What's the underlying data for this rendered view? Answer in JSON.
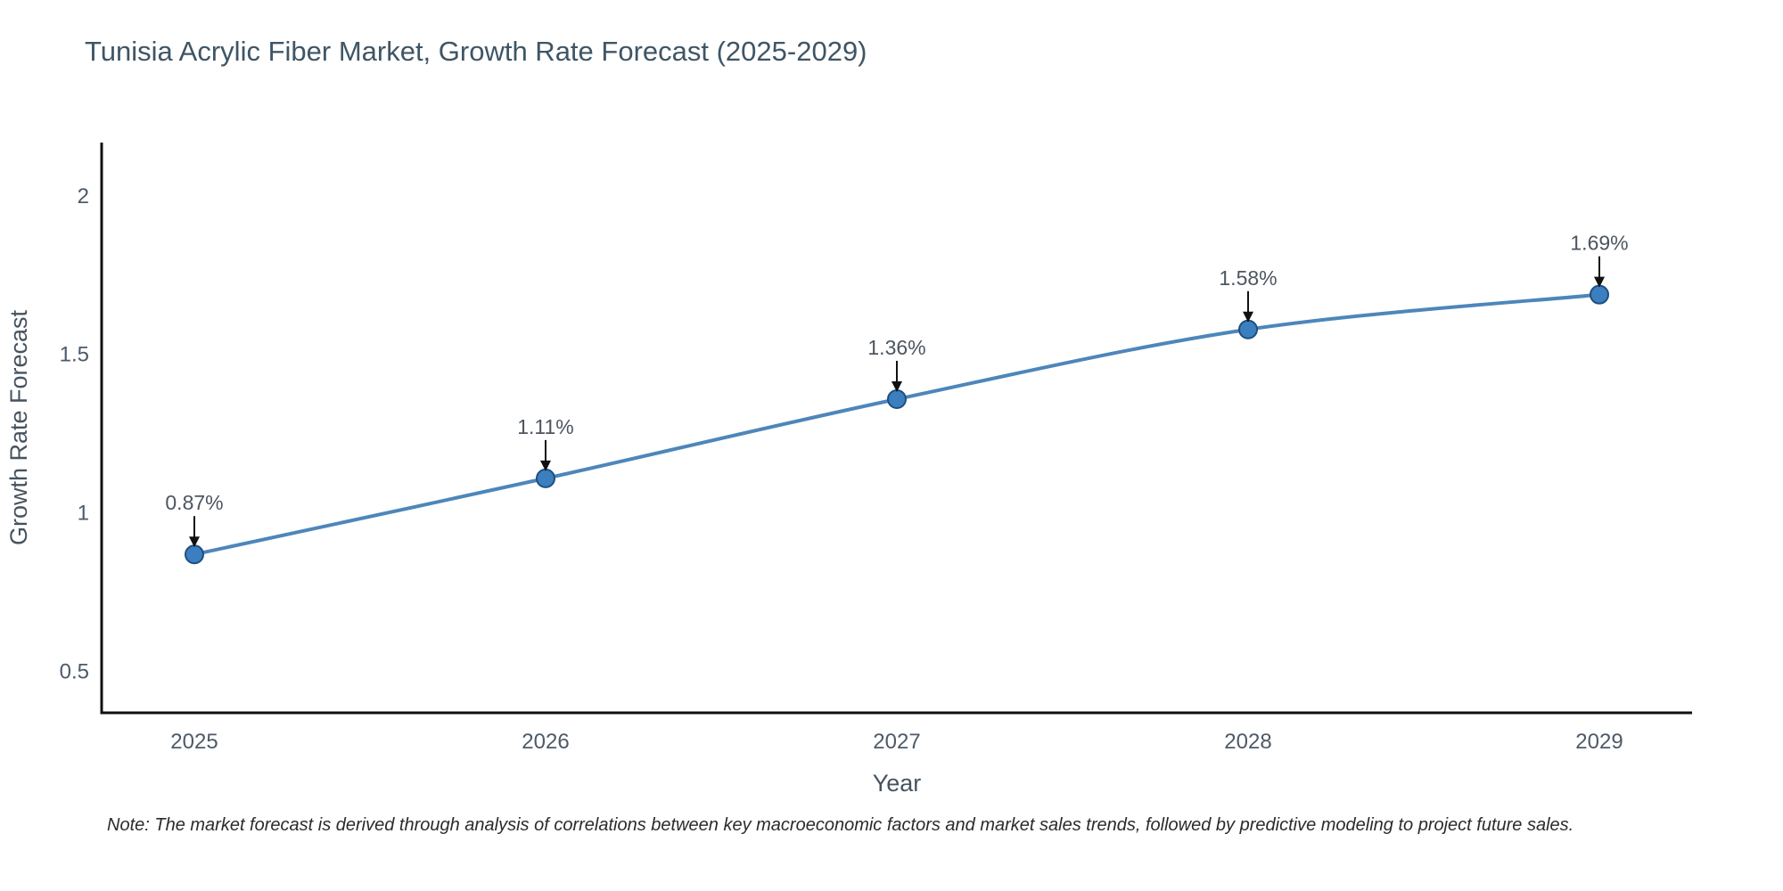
{
  "title": "Tunisia Acrylic Fiber Market, Growth Rate Forecast (2025-2029)",
  "note": "Note: The market forecast is derived through analysis of correlations between key macroeconomic factors and market sales trends, followed by predictive modeling to project future sales.",
  "chart_data": {
    "type": "line",
    "title": "Tunisia Acrylic Fiber Market, Growth Rate Forecast (2025-2029)",
    "categories": [
      "2025",
      "2026",
      "2027",
      "2028",
      "2029"
    ],
    "values": [
      0.87,
      1.11,
      1.36,
      1.58,
      1.69
    ],
    "point_labels": [
      "0.87%",
      "1.11%",
      "1.36%",
      "1.58%",
      "1.69%"
    ],
    "xlabel": "Year",
    "ylabel": "Growth Rate Forecast",
    "yticks": [
      {
        "value": 0.5,
        "label": "0.5"
      },
      {
        "value": 1,
        "label": "1"
      },
      {
        "value": 1.5,
        "label": "1.5"
      },
      {
        "value": 2,
        "label": "2"
      }
    ],
    "ylim": [
      0.37,
      2.17
    ],
    "grid": false,
    "legend": "none",
    "line_shape": "spline",
    "colors": {
      "line": "#4d86ba",
      "marker_fill": "#3c7fc0",
      "marker_edge": "#1f4f7d",
      "axis": "#111111",
      "arrow": "#111111",
      "title_text": "#3f5565",
      "tick_text": "#4d5a68",
      "axis_title_text": "#46535f",
      "annotation_text": "#4d555f"
    }
  }
}
